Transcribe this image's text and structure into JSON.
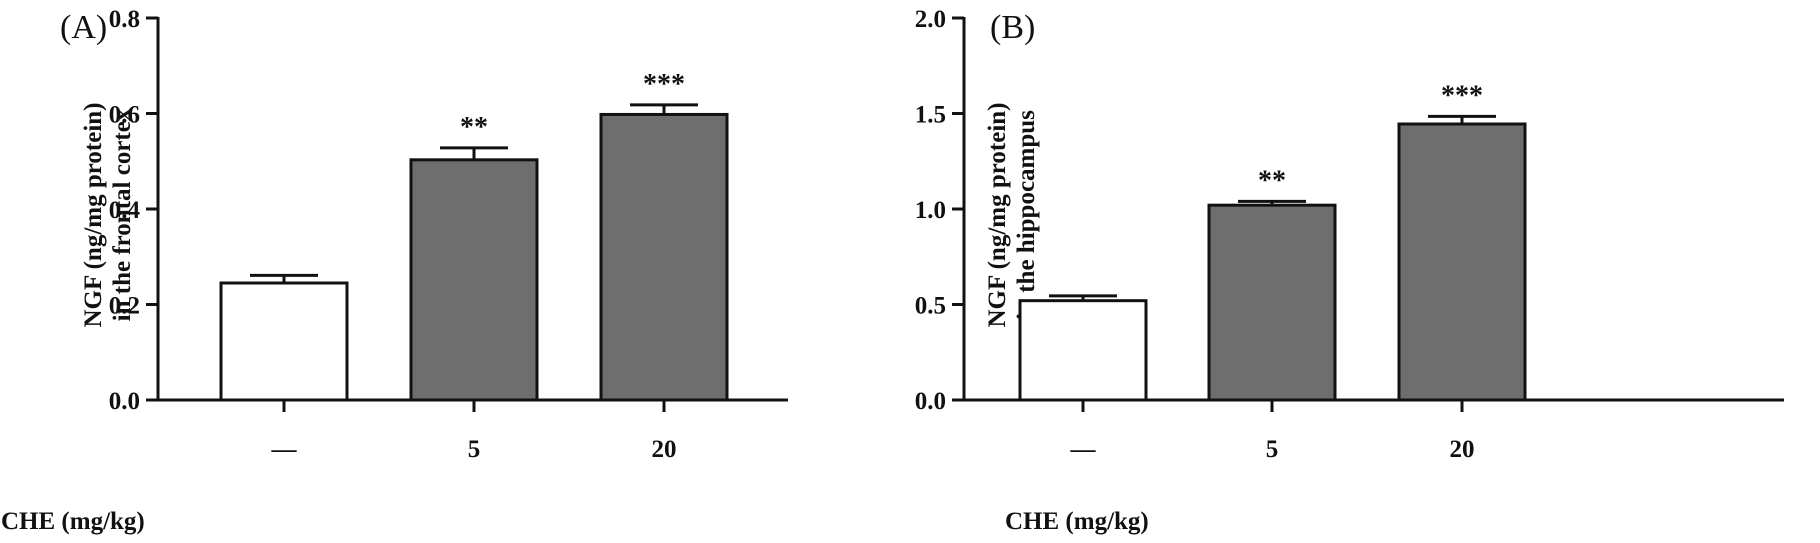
{
  "chart_data": [
    {
      "type": "bar",
      "panel_label": "(A)",
      "categories": [
        "—",
        "5",
        "20"
      ],
      "values": [
        0.245,
        0.503,
        0.598
      ],
      "errors": [
        0.016,
        0.025,
        0.02
      ],
      "significance": [
        "",
        "**",
        "***"
      ],
      "bar_colors": [
        "#ffffff",
        "#6e6e6e",
        "#6e6e6e"
      ],
      "ylabel_lines": [
        "NGF (ng/mg protein)",
        "in the frontal cortex"
      ],
      "xlabel": "CHE (mg/kg)",
      "ylim": [
        0.0,
        0.8
      ],
      "yticks": [
        0.0,
        0.2,
        0.4,
        0.6,
        0.8
      ],
      "ytick_labels": [
        "0.0",
        "0.2",
        "0.4",
        "0.6",
        "0.8"
      ]
    },
    {
      "type": "bar",
      "panel_label": "(B)",
      "categories": [
        "—",
        "5",
        "20"
      ],
      "values": [
        0.52,
        1.02,
        1.445
      ],
      "errors": [
        0.025,
        0.02,
        0.04
      ],
      "significance": [
        "",
        "**",
        "***"
      ],
      "bar_colors": [
        "#ffffff",
        "#6e6e6e",
        "#6e6e6e"
      ],
      "ylabel_lines": [
        "NGF (ng/mg protein)",
        "in the hippocampus"
      ],
      "xlabel": "CHE (mg/kg)",
      "ylim": [
        0.0,
        2.0
      ],
      "yticks": [
        0.0,
        0.5,
        1.0,
        1.5,
        2.0
      ],
      "ytick_labels": [
        "0.0",
        "0.5",
        "1.0",
        "1.5",
        "2.0"
      ]
    }
  ]
}
